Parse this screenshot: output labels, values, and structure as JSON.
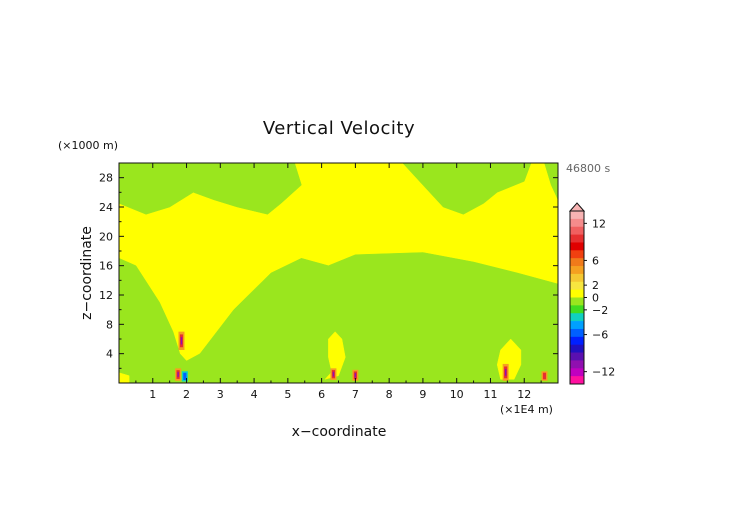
{
  "chart_data": {
    "type": "heatmap",
    "title": "Vertical Velocity",
    "xlabel": "x−coordinate",
    "ylabel": "z−coordinate",
    "x_unit": "(×1E4 m)",
    "y_unit": "(×1000 m)",
    "time_label": "46800 s",
    "xlim": [
      0,
      13
    ],
    "ylim": [
      0,
      30
    ],
    "x_ticks": [
      1,
      2,
      3,
      4,
      5,
      6,
      7,
      8,
      9,
      10,
      11,
      12
    ],
    "x_tick_labels": [
      "1",
      "2",
      "3",
      "4",
      "5",
      "6",
      "7",
      "8",
      "9",
      "10",
      "11",
      "12"
    ],
    "y_ticks": [
      4,
      8,
      12,
      16,
      20,
      24,
      28
    ],
    "y_tick_labels": [
      "4",
      "8",
      "12",
      "16",
      "20",
      "24",
      "28"
    ],
    "grid": false,
    "legend": "right",
    "colorbar": {
      "range": [
        -14,
        14
      ],
      "ticks": [
        12,
        6,
        2,
        0,
        -2,
        -6,
        -12
      ],
      "tick_labels": [
        "12",
        "6",
        "2",
        "0",
        "−2",
        "−6",
        "−12"
      ],
      "colors_top_to_bottom": [
        "#f7b3b3",
        "#f58c8c",
        "#f06060",
        "#e63030",
        "#e00000",
        "#f04010",
        "#f07a1a",
        "#f5a020",
        "#f5c832",
        "#f7e640",
        "#ffff00",
        "#9ae61e",
        "#40dc20",
        "#10d0c0",
        "#00a0ff",
        "#0060ff",
        "#0020ff",
        "#2010c0",
        "#5a10b0",
        "#9010b0",
        "#c000c0",
        "#ff10a0"
      ]
    },
    "colors": {
      "positive_small": "#ffff00",
      "negative_small": "#9ae61e"
    },
    "regions": [
      {
        "value_sign": "negative",
        "description_points": [
          [
            0,
            0
          ],
          [
            0,
            17
          ],
          [
            0.5,
            16
          ],
          [
            1.2,
            11
          ],
          [
            1.6,
            7
          ],
          [
            1.8,
            4
          ],
          [
            2.0,
            3
          ],
          [
            2.4,
            4
          ],
          [
            3.4,
            10
          ],
          [
            4.5,
            15
          ],
          [
            5.4,
            17
          ],
          [
            6.2,
            16
          ],
          [
            7,
            17.5
          ],
          [
            9,
            17.8
          ],
          [
            10.5,
            16.5
          ],
          [
            11.8,
            15
          ],
          [
            13,
            13.5
          ],
          [
            13,
            0
          ]
        ]
      },
      {
        "value_sign": "negative",
        "description_points": [
          [
            0,
            30
          ],
          [
            0,
            24.5
          ],
          [
            0.8,
            23
          ],
          [
            1.5,
            24
          ],
          [
            2.2,
            26
          ],
          [
            2.8,
            25
          ],
          [
            3.5,
            24
          ],
          [
            4.4,
            23
          ],
          [
            4.8,
            24.5
          ],
          [
            5.4,
            27
          ],
          [
            5.2,
            30
          ]
        ]
      },
      {
        "value_sign": "negative",
        "description_points": [
          [
            8.4,
            30
          ],
          [
            8.8,
            28
          ],
          [
            9.6,
            24
          ],
          [
            10.2,
            23
          ],
          [
            10.8,
            24.5
          ],
          [
            11.2,
            26
          ],
          [
            12.0,
            27.5
          ],
          [
            12.2,
            30
          ]
        ]
      },
      {
        "value_sign": "negative",
        "description_points": [
          [
            12.6,
            30
          ],
          [
            12.8,
            27
          ],
          [
            13,
            25
          ],
          [
            13,
            30
          ]
        ]
      },
      {
        "value_sign": "positive",
        "description_points": [
          [
            0,
            0
          ],
          [
            0.3,
            0
          ],
          [
            0.3,
            1
          ],
          [
            0,
            1.4
          ]
        ]
      },
      {
        "value_sign": "positive",
        "description_points": [
          [
            6.1,
            0.5
          ],
          [
            6.3,
            1.5
          ],
          [
            6.2,
            3.5
          ],
          [
            6.2,
            6
          ],
          [
            6.4,
            7
          ],
          [
            6.6,
            6
          ],
          [
            6.7,
            3.5
          ],
          [
            6.5,
            1
          ]
        ]
      },
      {
        "value_sign": "positive",
        "description_points": [
          [
            11.3,
            0.5
          ],
          [
            11.2,
            2.5
          ],
          [
            11.3,
            4.5
          ],
          [
            11.6,
            6
          ],
          [
            11.9,
            4.5
          ],
          [
            11.9,
            2.5
          ],
          [
            11.7,
            0.5
          ]
        ]
      }
    ],
    "updrafts": [
      {
        "x": 1.85,
        "z_bottom": 4.5,
        "z_top": 7.0,
        "peak": 10
      },
      {
        "x": 1.75,
        "z_bottom": 0.3,
        "z_top": 2.0,
        "peak": 12
      },
      {
        "x": 1.95,
        "z_bottom": 0.2,
        "z_top": 1.6,
        "peak": -4
      },
      {
        "x": 6.35,
        "z_bottom": 0.4,
        "z_top": 2.0,
        "peak": 12
      },
      {
        "x": 7.0,
        "z_bottom": 0.3,
        "z_top": 1.8,
        "peak": 10
      },
      {
        "x": 11.45,
        "z_bottom": 0.3,
        "z_top": 2.6,
        "peak": 12
      },
      {
        "x": 12.6,
        "z_bottom": 0.3,
        "z_top": 1.6,
        "peak": 8
      }
    ]
  }
}
